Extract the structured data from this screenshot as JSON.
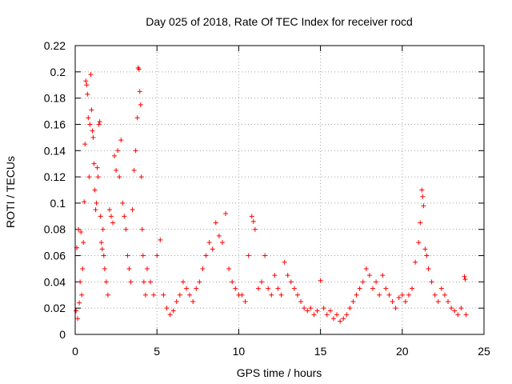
{
  "chart_data": {
    "type": "scatter",
    "title": "Day 025 of 2018, Rate Of TEC Index for receiver rocd",
    "xlabel": "GPS time / hours",
    "ylabel": "ROTI / TECUs",
    "xlim": [
      0,
      25
    ],
    "ylim": [
      0,
      0.22
    ],
    "xticks": [
      0,
      5,
      10,
      15,
      20,
      25
    ],
    "xtick_labels": [
      "0",
      "5",
      "10",
      "15",
      "20",
      "25"
    ],
    "yticks": [
      0,
      0.02,
      0.04,
      0.06,
      0.08,
      0.1,
      0.12,
      0.14,
      0.16,
      0.18,
      0.2,
      0.22
    ],
    "ytick_labels": [
      "0",
      "0.02",
      "0.04",
      "0.06",
      "0.08",
      "0.1",
      "0.12",
      "0.14",
      "0.16",
      "0.18",
      "0.2",
      "0.22"
    ],
    "grid": true,
    "marker": "plus",
    "marker_color": "#ff0000",
    "series": [
      {
        "name": "ROTI",
        "points": [
          [
            0.05,
            0.018
          ],
          [
            0.1,
            0.066
          ],
          [
            0.15,
            0.012
          ],
          [
            0.2,
            0.08
          ],
          [
            0.25,
            0.024
          ],
          [
            0.3,
            0.04
          ],
          [
            0.35,
            0.078
          ],
          [
            0.4,
            0.03
          ],
          [
            0.45,
            0.05
          ],
          [
            0.5,
            0.07
          ],
          [
            0.55,
            0.101
          ],
          [
            0.6,
            0.145
          ],
          [
            0.65,
            0.193
          ],
          [
            0.7,
            0.19
          ],
          [
            0.75,
            0.183
          ],
          [
            0.8,
            0.165
          ],
          [
            0.85,
            0.12
          ],
          [
            0.9,
            0.16
          ],
          [
            0.95,
            0.198
          ],
          [
            1.0,
            0.171
          ],
          [
            1.05,
            0.155
          ],
          [
            1.1,
            0.15
          ],
          [
            1.15,
            0.13
          ],
          [
            1.2,
            0.11
          ],
          [
            1.25,
            0.095
          ],
          [
            1.3,
            0.1
          ],
          [
            1.35,
            0.127
          ],
          [
            1.4,
            0.12
          ],
          [
            1.45,
            0.16
          ],
          [
            1.5,
            0.162
          ],
          [
            1.55,
            0.09
          ],
          [
            1.6,
            0.07
          ],
          [
            1.65,
            0.065
          ],
          [
            1.7,
            0.08
          ],
          [
            1.75,
            0.06
          ],
          [
            1.8,
            0.05
          ],
          [
            1.9,
            0.04
          ],
          [
            2.0,
            0.03
          ],
          [
            2.1,
            0.095
          ],
          [
            2.2,
            0.09
          ],
          [
            2.3,
            0.085
          ],
          [
            2.4,
            0.136
          ],
          [
            2.5,
            0.125
          ],
          [
            2.6,
            0.14
          ],
          [
            2.7,
            0.12
          ],
          [
            2.8,
            0.148
          ],
          [
            2.9,
            0.1
          ],
          [
            3.0,
            0.09
          ],
          [
            3.1,
            0.08
          ],
          [
            3.2,
            0.06
          ],
          [
            3.3,
            0.05
          ],
          [
            3.4,
            0.04
          ],
          [
            3.5,
            0.095
          ],
          [
            3.6,
            0.125
          ],
          [
            3.7,
            0.14
          ],
          [
            3.8,
            0.165
          ],
          [
            3.85,
            0.203
          ],
          [
            3.9,
            0.202
          ],
          [
            3.95,
            0.185
          ],
          [
            4.0,
            0.175
          ],
          [
            4.05,
            0.12
          ],
          [
            4.1,
            0.08
          ],
          [
            4.15,
            0.06
          ],
          [
            4.2,
            0.04
          ],
          [
            4.3,
            0.03
          ],
          [
            4.4,
            0.05
          ],
          [
            4.6,
            0.04
          ],
          [
            4.8,
            0.03
          ],
          [
            5.0,
            0.06
          ],
          [
            5.2,
            0.072
          ],
          [
            5.4,
            0.03
          ],
          [
            5.6,
            0.02
          ],
          [
            5.8,
            0.015
          ],
          [
            6.0,
            0.018
          ],
          [
            6.2,
            0.025
          ],
          [
            6.4,
            0.03
          ],
          [
            6.6,
            0.04
          ],
          [
            6.8,
            0.035
          ],
          [
            7.0,
            0.03
          ],
          [
            7.2,
            0.025
          ],
          [
            7.4,
            0.035
          ],
          [
            7.6,
            0.04
          ],
          [
            7.8,
            0.05
          ],
          [
            8.0,
            0.06
          ],
          [
            8.2,
            0.07
          ],
          [
            8.4,
            0.065
          ],
          [
            8.6,
            0.085
          ],
          [
            8.8,
            0.075
          ],
          [
            9.0,
            0.07
          ],
          [
            9.2,
            0.092
          ],
          [
            9.4,
            0.05
          ],
          [
            9.6,
            0.04
          ],
          [
            9.8,
            0.035
          ],
          [
            10.0,
            0.03
          ],
          [
            10.2,
            0.03
          ],
          [
            10.4,
            0.025
          ],
          [
            10.6,
            0.06
          ],
          [
            10.8,
            0.09
          ],
          [
            10.9,
            0.086
          ],
          [
            11.0,
            0.08
          ],
          [
            11.2,
            0.035
          ],
          [
            11.4,
            0.04
          ],
          [
            11.6,
            0.06
          ],
          [
            11.8,
            0.035
          ],
          [
            12.0,
            0.03
          ],
          [
            12.2,
            0.045
          ],
          [
            12.4,
            0.035
          ],
          [
            12.6,
            0.03
          ],
          [
            12.8,
            0.055
          ],
          [
            13.0,
            0.045
          ],
          [
            13.2,
            0.04
          ],
          [
            13.4,
            0.035
          ],
          [
            13.6,
            0.03
          ],
          [
            13.8,
            0.025
          ],
          [
            14.0,
            0.02
          ],
          [
            14.2,
            0.018
          ],
          [
            14.4,
            0.02
          ],
          [
            14.6,
            0.015
          ],
          [
            14.8,
            0.018
          ],
          [
            15.0,
            0.041
          ],
          [
            15.2,
            0.02
          ],
          [
            15.4,
            0.015
          ],
          [
            15.6,
            0.018
          ],
          [
            15.8,
            0.012
          ],
          [
            16.0,
            0.015
          ],
          [
            16.2,
            0.01
          ],
          [
            16.4,
            0.012
          ],
          [
            16.6,
            0.015
          ],
          [
            16.8,
            0.02
          ],
          [
            17.0,
            0.025
          ],
          [
            17.2,
            0.03
          ],
          [
            17.4,
            0.035
          ],
          [
            17.6,
            0.04
          ],
          [
            17.8,
            0.05
          ],
          [
            18.0,
            0.045
          ],
          [
            18.2,
            0.035
          ],
          [
            18.4,
            0.04
          ],
          [
            18.6,
            0.03
          ],
          [
            18.8,
            0.045
          ],
          [
            19.0,
            0.035
          ],
          [
            19.2,
            0.03
          ],
          [
            19.4,
            0.025
          ],
          [
            19.6,
            0.02
          ],
          [
            19.8,
            0.028
          ],
          [
            20.0,
            0.03
          ],
          [
            20.2,
            0.025
          ],
          [
            20.4,
            0.03
          ],
          [
            20.6,
            0.035
          ],
          [
            20.8,
            0.055
          ],
          [
            21.0,
            0.07
          ],
          [
            21.1,
            0.085
          ],
          [
            21.2,
            0.11
          ],
          [
            21.25,
            0.105
          ],
          [
            21.3,
            0.098
          ],
          [
            21.4,
            0.065
          ],
          [
            21.5,
            0.06
          ],
          [
            21.6,
            0.05
          ],
          [
            21.8,
            0.04
          ],
          [
            22.0,
            0.03
          ],
          [
            22.2,
            0.025
          ],
          [
            22.4,
            0.035
          ],
          [
            22.6,
            0.03
          ],
          [
            22.8,
            0.025
          ],
          [
            23.0,
            0.02
          ],
          [
            23.2,
            0.018
          ],
          [
            23.4,
            0.015
          ],
          [
            23.6,
            0.02
          ],
          [
            23.8,
            0.044
          ],
          [
            23.85,
            0.042
          ],
          [
            23.9,
            0.015
          ]
        ]
      }
    ]
  }
}
